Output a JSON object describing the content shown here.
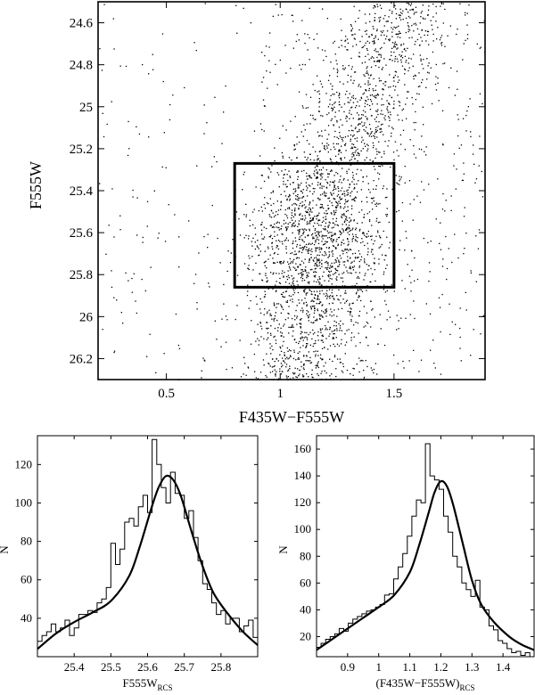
{
  "chart_data": [
    {
      "type": "scatter",
      "title": "",
      "xlabel": "F435W−F555W",
      "ylabel": "F555W",
      "xlim": [
        0.2,
        1.9
      ],
      "ylim": [
        26.3,
        24.5
      ],
      "y_inverted": true,
      "xticks": [
        0.5,
        1,
        1.5
      ],
      "xtick_labels": [
        "0.5",
        "1",
        "1.5"
      ],
      "yticks": [
        24.6,
        24.8,
        25,
        25.2,
        25.4,
        25.6,
        25.8,
        26,
        26.2
      ],
      "ytick_labels": [
        "24.6",
        "24.8",
        "25",
        "25.2",
        "25.4",
        "25.6",
        "25.8",
        "26",
        "26.2"
      ],
      "density_components": [
        {
          "weight": 0.16,
          "x_center": 1.17,
          "x_sigma": 0.16,
          "y_center": 25.62,
          "y_sigma": 0.17
        },
        {
          "weight": 0.4,
          "x_center": 1.15,
          "x_sigma": 0.14,
          "y_range": [
            25.3,
            26.3
          ],
          "x_slope_per_mag": -0.12
        },
        {
          "weight": 0.24,
          "x_center": 1.4,
          "x_sigma": 0.13,
          "y_range": [
            24.5,
            25.3
          ],
          "x_slope_per_mag": -0.35
        },
        {
          "weight": 0.1,
          "x_range": [
            0.9,
            1.9
          ],
          "y_range": [
            24.5,
            26.3
          ]
        },
        {
          "weight": 0.1,
          "x_range": [
            0.2,
            1.9
          ],
          "y_range": [
            24.5,
            26.3
          ]
        }
      ],
      "n_points": 3200,
      "selection_box": {
        "x": [
          0.8,
          1.5
        ],
        "y": [
          25.27,
          25.86
        ]
      },
      "grid": false
    },
    {
      "type": "line",
      "title": "",
      "xlabel": "F555W",
      "xlabel_sub": "RCS",
      "ylabel": "N",
      "xlim": [
        25.3,
        25.9
      ],
      "ylim": [
        20,
        135
      ],
      "xticks": [
        25.4,
        25.5,
        25.6,
        25.7,
        25.8
      ],
      "xtick_labels": [
        "25.4",
        "25.5",
        "25.6",
        "25.7",
        "25.8"
      ],
      "yticks": [
        40,
        60,
        80,
        100,
        120
      ],
      "ytick_labels": [
        "40",
        "60",
        "80",
        "100",
        "120"
      ],
      "series": [
        {
          "style": "step histogram",
          "x_start": 25.3,
          "bin_width": 0.0125,
          "values": [
            28,
            31,
            33,
            37,
            33,
            35,
            39,
            31,
            35,
            42,
            42,
            44,
            43,
            48,
            50,
            56,
            79,
            68,
            76,
            90,
            92,
            88,
            98,
            104,
            95,
            133,
            120,
            108,
            100,
            116,
            105,
            104,
            92,
            96,
            82,
            70,
            58,
            55,
            48,
            42,
            44,
            37,
            40,
            40,
            33,
            36,
            39,
            30
          ]
        },
        {
          "style": "smooth curve",
          "x": [
            25.3,
            25.35,
            25.4,
            25.45,
            25.5,
            25.55,
            25.58,
            25.61,
            25.63,
            25.65,
            25.67,
            25.69,
            25.72,
            25.75,
            25.78,
            25.82,
            25.86,
            25.9
          ],
          "values": [
            24,
            32,
            38,
            43,
            49,
            62,
            78,
            97,
            108,
            114,
            112,
            104,
            85,
            67,
            53,
            42,
            33,
            26
          ]
        }
      ]
    },
    {
      "type": "line",
      "title": "",
      "xlabel": "(F435W−F555W)",
      "xlabel_sub": "RCS",
      "ylabel": "N",
      "xlim": [
        0.8,
        1.5
      ],
      "ylim": [
        5,
        170
      ],
      "xticks": [
        0.9,
        1,
        1.1,
        1.2,
        1.3,
        1.4
      ],
      "xtick_labels": [
        "0.9",
        "1",
        "1.1",
        "1.2",
        "1.3",
        "1.4"
      ],
      "yticks": [
        20,
        40,
        60,
        80,
        100,
        120,
        140,
        160
      ],
      "ytick_labels": [
        "20",
        "40",
        "60",
        "80",
        "100",
        "120",
        "140",
        "160"
      ],
      "series": [
        {
          "style": "step histogram",
          "x_start": 0.8,
          "bin_width": 0.0146,
          "values": [
            12,
            15,
            18,
            20,
            22,
            26,
            24,
            30,
            33,
            35,
            37,
            39,
            40,
            42,
            44,
            51,
            52,
            63,
            72,
            82,
            95,
            110,
            122,
            120,
            164,
            140,
            137,
            130,
            110,
            98,
            80,
            72,
            60,
            55,
            50,
            62,
            42,
            40,
            28,
            25,
            17,
            15,
            11,
            8,
            9,
            6,
            8,
            5
          ]
        },
        {
          "style": "smooth curve",
          "x": [
            0.8,
            0.85,
            0.9,
            0.95,
            1.0,
            1.05,
            1.1,
            1.13,
            1.16,
            1.18,
            1.2,
            1.22,
            1.24,
            1.27,
            1.3,
            1.33,
            1.37,
            1.42,
            1.46,
            1.5
          ],
          "values": [
            10,
            18,
            26,
            34,
            42,
            51,
            68,
            88,
            112,
            128,
            136,
            132,
            118,
            90,
            62,
            44,
            31,
            20,
            14,
            10
          ]
        }
      ]
    }
  ]
}
